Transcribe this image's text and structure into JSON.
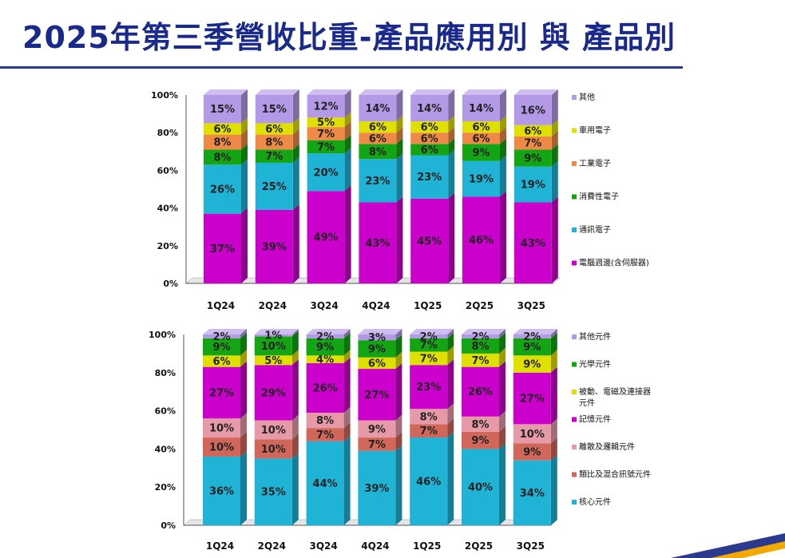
{
  "title": "2025年第三季營收比重-產品應用別 與 產品別",
  "chart_data": [
    {
      "type": "bar",
      "stacked": true,
      "categories": [
        "1Q24",
        "2Q24",
        "3Q24",
        "4Q24",
        "1Q25",
        "2Q25",
        "3Q25"
      ],
      "ylim": [
        0,
        100
      ],
      "yticks": [
        "0%",
        "20%",
        "40%",
        "60%",
        "80%",
        "100%"
      ],
      "legend_position": "right",
      "series": [
        {
          "name": "電腦週邊(含伺服器)",
          "color": "#cc00cc",
          "values": [
            37,
            39,
            49,
            43,
            45,
            46,
            43
          ]
        },
        {
          "name": "通訊電子",
          "color": "#1fb3d6",
          "values": [
            26,
            25,
            20,
            23,
            23,
            19,
            19
          ]
        },
        {
          "name": "消費性電子",
          "color": "#13a513",
          "values": [
            8,
            7,
            7,
            8,
            6,
            9,
            9
          ]
        },
        {
          "name": "工業電子",
          "color": "#ee8a45",
          "values": [
            8,
            8,
            7,
            6,
            6,
            6,
            7
          ]
        },
        {
          "name": "車用電子",
          "color": "#e0e000",
          "values": [
            6,
            6,
            5,
            6,
            6,
            6,
            6
          ]
        },
        {
          "name": "其他",
          "color": "#b49ae6",
          "values": [
            15,
            15,
            12,
            14,
            14,
            14,
            16
          ]
        }
      ]
    },
    {
      "type": "bar",
      "stacked": true,
      "categories": [
        "1Q24",
        "2Q24",
        "3Q24",
        "4Q24",
        "1Q25",
        "2Q25",
        "3Q25"
      ],
      "ylim": [
        0,
        100
      ],
      "yticks": [
        "0%",
        "20%",
        "40%",
        "60%",
        "80%",
        "100%"
      ],
      "legend_position": "right",
      "series": [
        {
          "name": "核心元件",
          "color": "#1fb3d6",
          "values": [
            36,
            35,
            44,
            39,
            46,
            40,
            34
          ]
        },
        {
          "name": "類比及混合訊號元件",
          "color": "#d0675a",
          "values": [
            10,
            10,
            7,
            7,
            7,
            9,
            9
          ]
        },
        {
          "name": "離散及邏輯元件",
          "color": "#e69aa8",
          "values": [
            10,
            10,
            8,
            9,
            8,
            8,
            10
          ]
        },
        {
          "name": "記憶元件",
          "color": "#cc00cc",
          "values": [
            27,
            29,
            26,
            27,
            23,
            26,
            27
          ]
        },
        {
          "name": "被動、電磁及連接器元件",
          "color": "#e0e000",
          "values": [
            6,
            5,
            4,
            6,
            7,
            7,
            9
          ]
        },
        {
          "name": "光學元件",
          "color": "#13a513",
          "values": [
            9,
            10,
            9,
            9,
            7,
            8,
            9
          ]
        },
        {
          "name": "其他元件",
          "color": "#b49ae6",
          "values": [
            2,
            1,
            2,
            3,
            2,
            2,
            2
          ]
        }
      ]
    }
  ]
}
